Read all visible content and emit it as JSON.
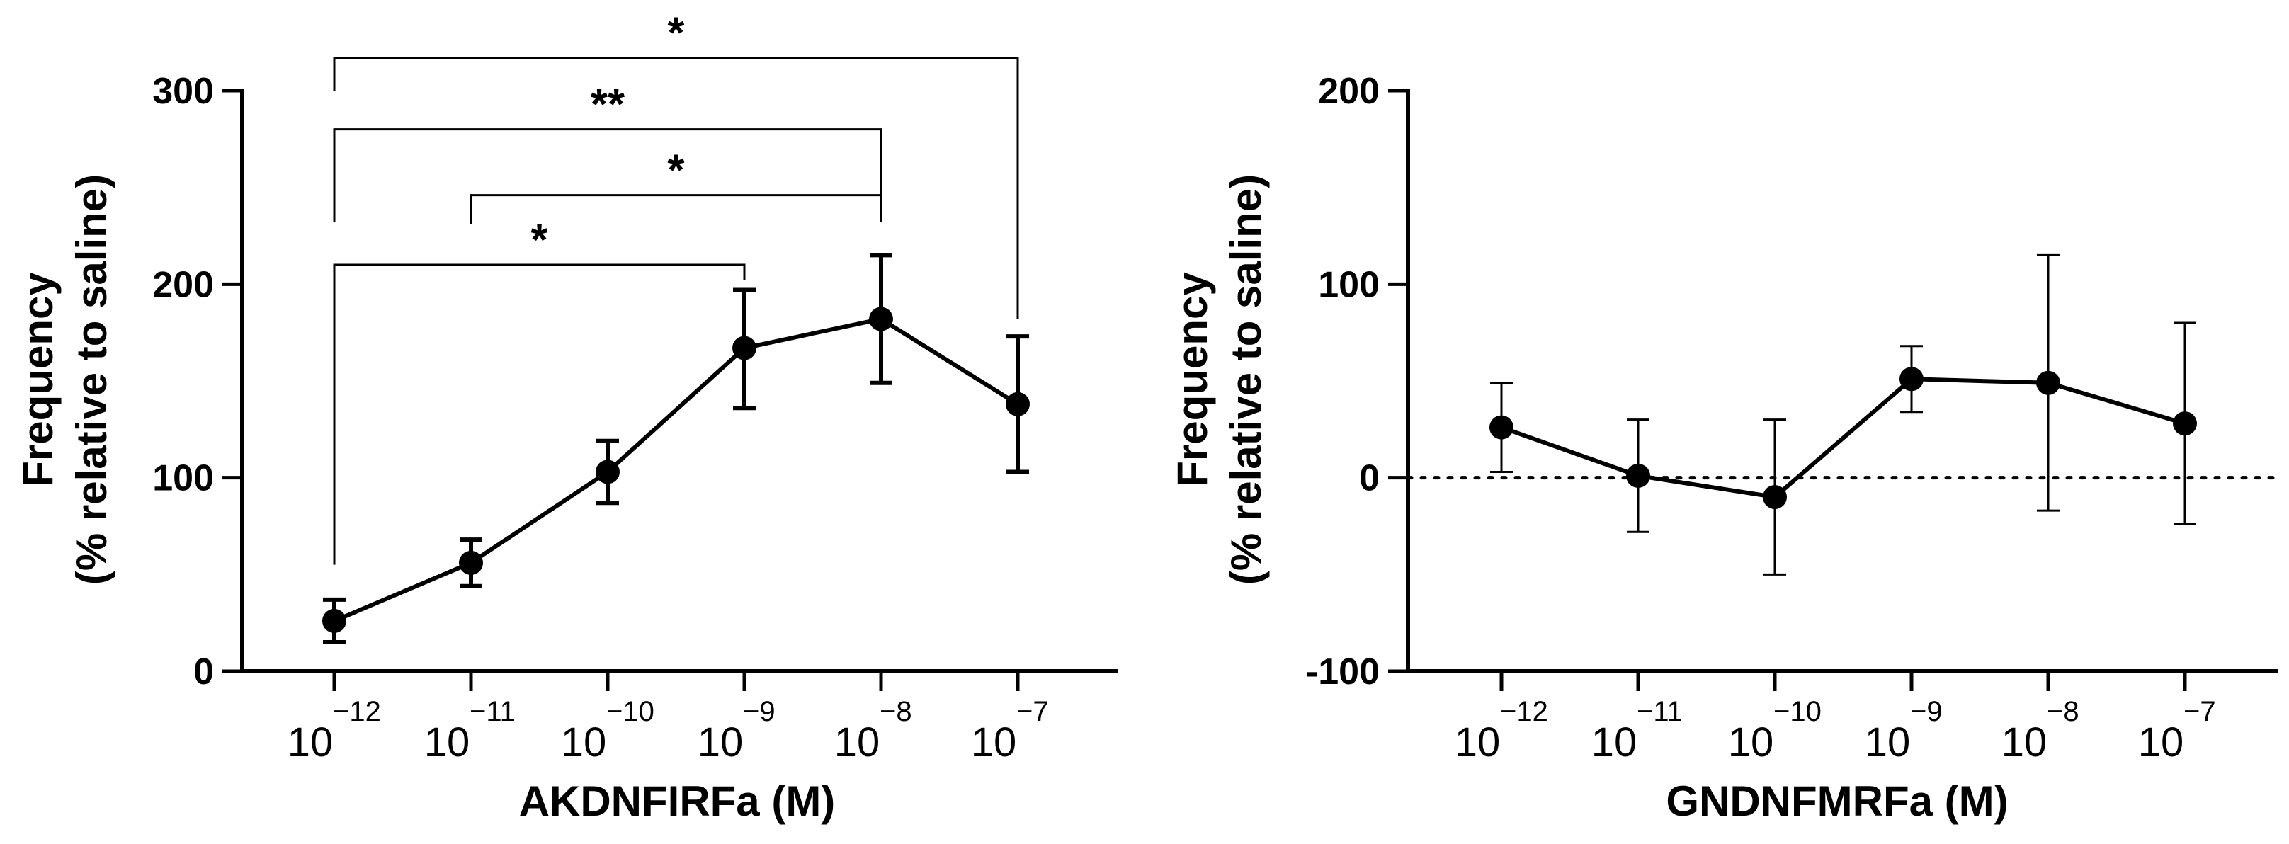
{
  "chart_data": [
    {
      "type": "line",
      "panel": "left",
      "title": "",
      "xlabel": "AKDNFIRFa (M)",
      "ylabel_line1": "Frequency",
      "ylabel_line2": "(% relative to saline)",
      "ylim": [
        0,
        300
      ],
      "yticks": [
        0,
        100,
        200,
        300
      ],
      "categories": [
        {
          "base": "10",
          "exp": "−12"
        },
        {
          "base": "10",
          "exp": "−11"
        },
        {
          "base": "10",
          "exp": "−10"
        },
        {
          "base": "10",
          "exp": "−9"
        },
        {
          "base": "10",
          "exp": "−8"
        },
        {
          "base": "10",
          "exp": "−7"
        }
      ],
      "series": [
        {
          "name": "AKDNFIRFa",
          "values": [
            26,
            56,
            103,
            167,
            182,
            138
          ],
          "err_low": [
            15,
            44,
            87,
            136,
            149,
            103
          ],
          "err_high": [
            37,
            68,
            119,
            197,
            215,
            173
          ]
        }
      ],
      "reference_line": null,
      "significance": [
        {
          "from": 0,
          "to": 5,
          "label": "*",
          "y": 317,
          "left_drop": 300,
          "right_drop": 182
        },
        {
          "from": 0,
          "to": 4,
          "label": "**",
          "y": 280,
          "left_drop": 232,
          "right_drop": 237
        },
        {
          "from": 1,
          "to": 4,
          "label": "*",
          "y": 246,
          "left_drop": 231,
          "right_drop": 232
        },
        {
          "from": 0,
          "to": 3,
          "label": "*",
          "y": 210,
          "left_drop": 55,
          "right_drop": 202
        }
      ]
    },
    {
      "type": "line",
      "panel": "right",
      "title": "",
      "xlabel": "GNDNFMRFa (M)",
      "ylabel_line1": "Frequency",
      "ylabel_line2": "(% relative to saline)",
      "ylim": [
        -100,
        200
      ],
      "yticks": [
        -100,
        0,
        100,
        200
      ],
      "categories": [
        {
          "base": "10",
          "exp": "−12"
        },
        {
          "base": "10",
          "exp": "−11"
        },
        {
          "base": "10",
          "exp": "−10"
        },
        {
          "base": "10",
          "exp": "−9"
        },
        {
          "base": "10",
          "exp": "−8"
        },
        {
          "base": "10",
          "exp": "−7"
        }
      ],
      "series": [
        {
          "name": "GNDNFMRFa",
          "values": [
            26,
            1,
            -10,
            51,
            49,
            28
          ],
          "err_low": [
            3,
            -28,
            -50,
            34,
            -17,
            -24
          ],
          "err_high": [
            49,
            30,
            30,
            68,
            115,
            80
          ]
        }
      ],
      "reference_line": {
        "y": 0,
        "style": "dotted"
      },
      "significance": []
    }
  ]
}
